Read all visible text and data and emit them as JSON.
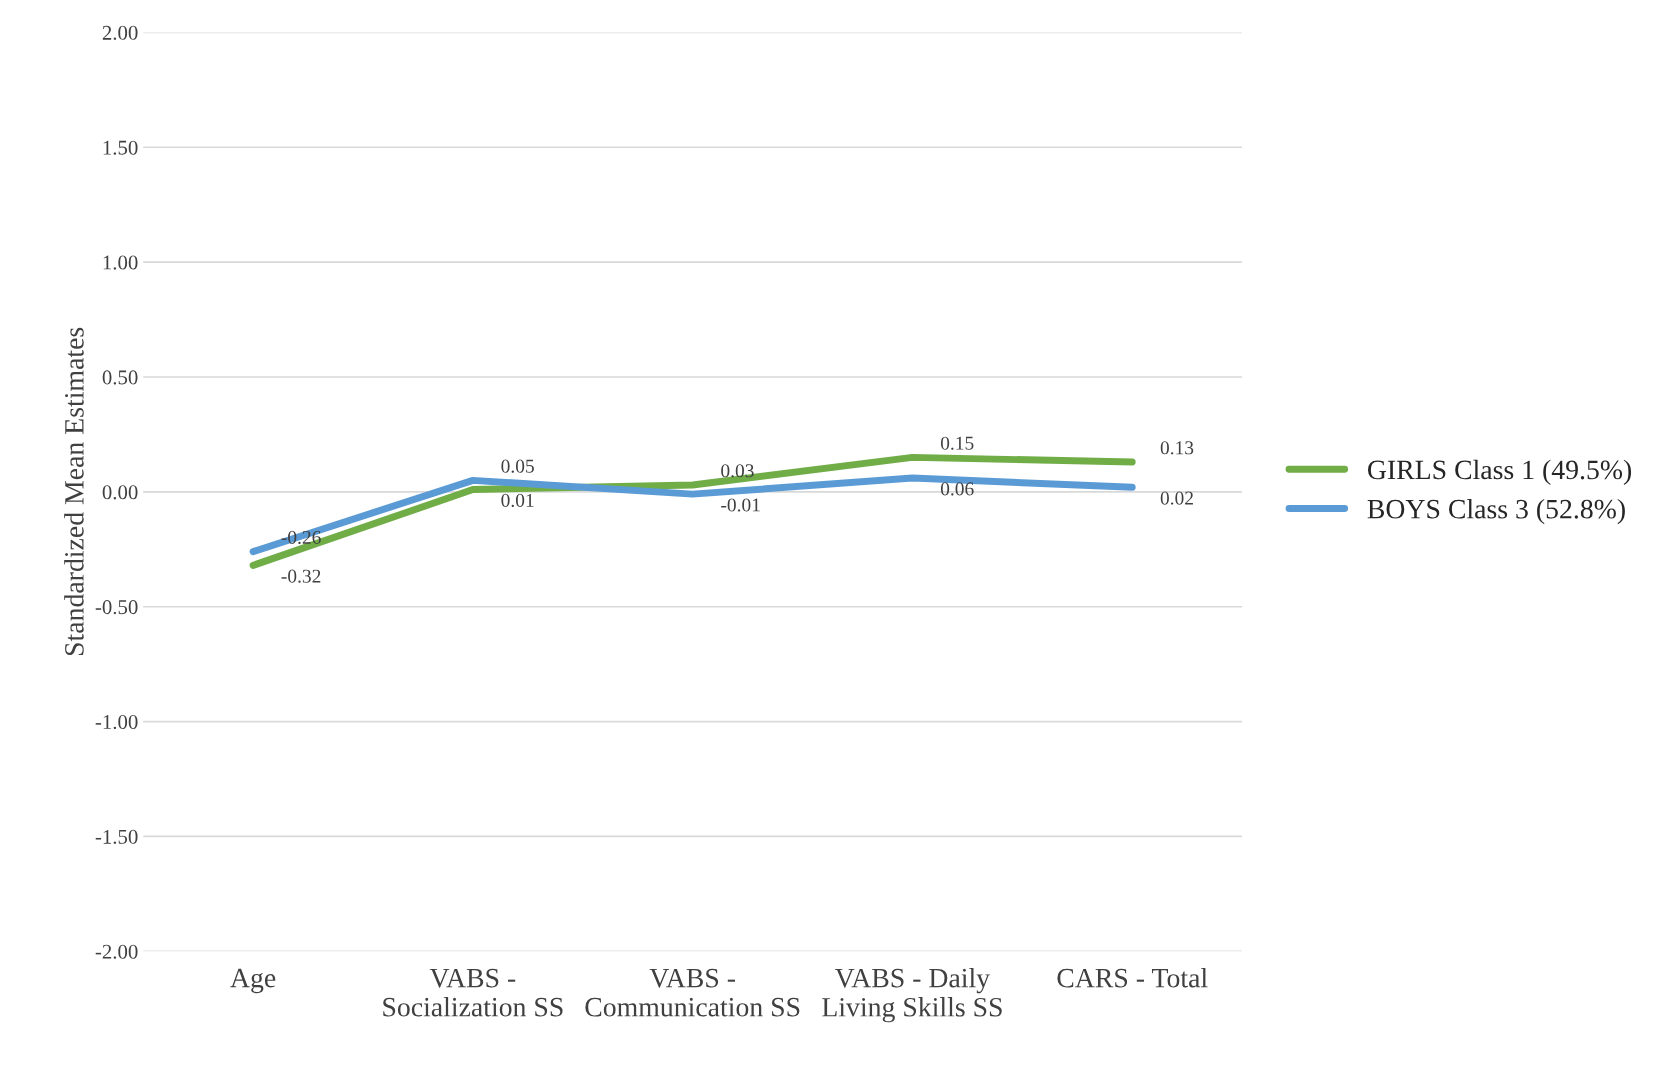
{
  "chart_data": {
    "type": "line",
    "ylabel": "Standardized Mean Estimates",
    "categories": [
      "Age",
      "VABS - Socialization SS",
      "VABS - Communication SS",
      "VABS - Daily Living Skills SS",
      "CARS - Total"
    ],
    "series": [
      {
        "name": "GIRLS Class 1 (49.5%)",
        "color": "#70ad47",
        "values": [
          -0.32,
          0.01,
          0.03,
          0.15,
          0.13
        ]
      },
      {
        "name": "BOYS Class 3 (52.8%)",
        "color": "#5b9bd5",
        "values": [
          -0.26,
          0.05,
          -0.01,
          0.06,
          0.02
        ]
      }
    ],
    "ylim": [
      -2,
      2
    ],
    "yticks": [
      {
        "value": -2,
        "label": "-2.00"
      },
      {
        "value": -1.5,
        "label": "-1.50"
      },
      {
        "value": -1,
        "label": "-1.00"
      },
      {
        "value": -0.5,
        "label": "-0.50"
      },
      {
        "value": 0,
        "label": "0.00"
      },
      {
        "value": 0.5,
        "label": "0.50"
      },
      {
        "value": 1,
        "label": "1.00"
      },
      {
        "value": 1.5,
        "label": "1.50"
      },
      {
        "value": 2,
        "label": "2.00"
      }
    ],
    "grid": "y",
    "legend": "right",
    "data_labels": true,
    "marker": "none",
    "line_style": "solid"
  }
}
